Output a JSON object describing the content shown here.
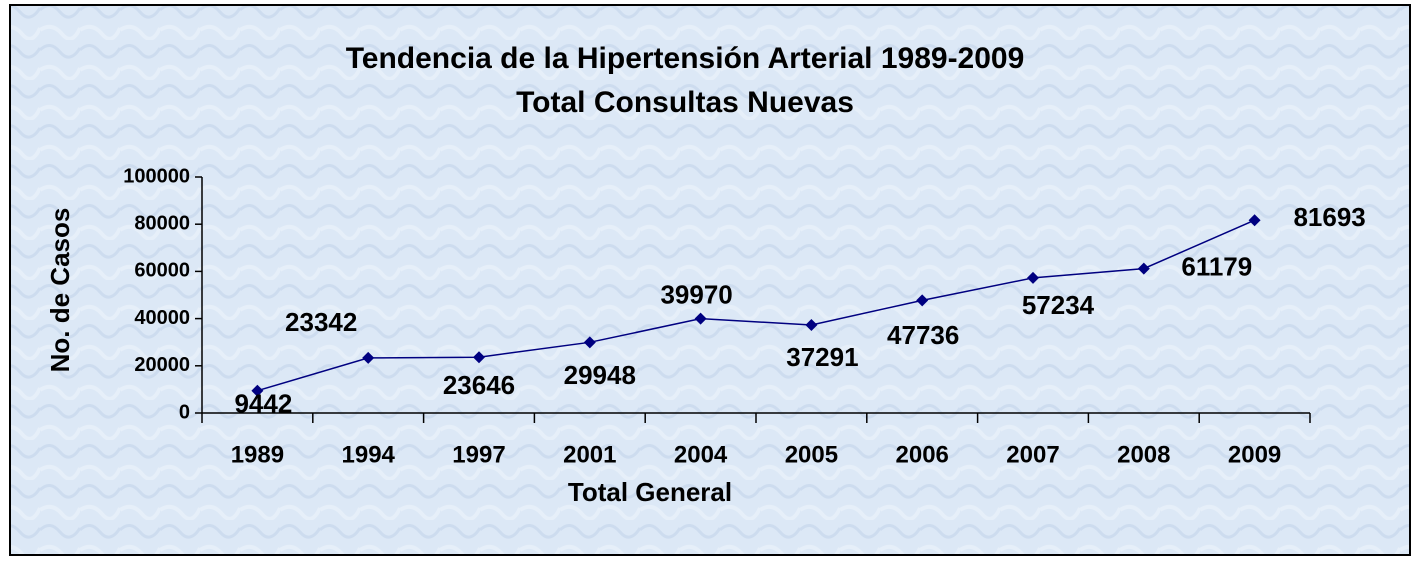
{
  "chart_data": {
    "type": "line",
    "title": "Tendencia de la Hipertensión Arterial 1989-2009",
    "subtitle": "Total Consultas Nuevas",
    "x_label": "Total General",
    "y_label": "No. de Casos",
    "categories": [
      "1989",
      "1994",
      "1997",
      "2001",
      "2004",
      "2005",
      "2006",
      "2007",
      "2008",
      "2009"
    ],
    "series": [
      {
        "name": "Total General",
        "color": "#000080",
        "values": [
          9442,
          23342,
          23646,
          29948,
          39970,
          37291,
          47736,
          57234,
          61179,
          81693
        ]
      }
    ],
    "ylim": [
      0,
      100000
    ],
    "yticks": [
      0,
      20000,
      40000,
      60000,
      80000,
      100000
    ],
    "grid": false
  }
}
